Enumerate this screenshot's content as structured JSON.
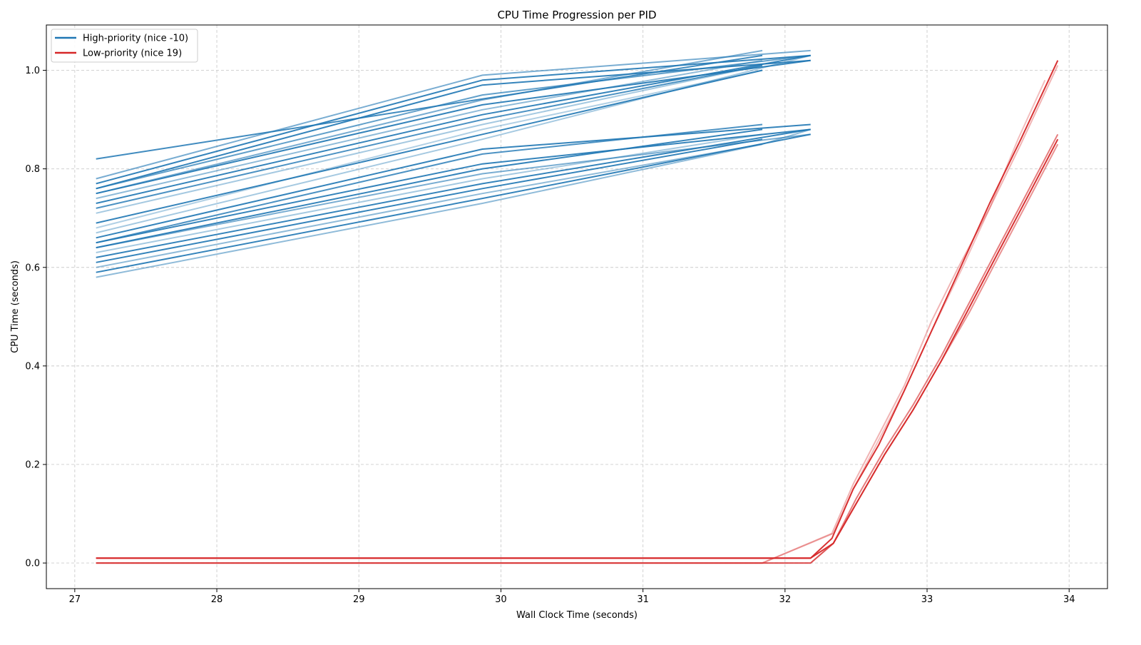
{
  "chart_data": {
    "type": "line",
    "title": "CPU Time Progression per PID",
    "xlabel": "Wall Clock Time (seconds)",
    "ylabel": "CPU Time (seconds)",
    "xlim": [
      26.8,
      34.27
    ],
    "ylim": [
      -0.052,
      1.092
    ],
    "xticks": [
      27,
      28,
      29,
      30,
      31,
      32,
      33,
      34
    ],
    "yticks": [
      0.0,
      0.2,
      0.4,
      0.6,
      0.8,
      1.0
    ],
    "xtick_labels": [
      "27",
      "28",
      "29",
      "30",
      "31",
      "32",
      "33",
      "34"
    ],
    "ytick_labels": [
      "0.0",
      "0.2",
      "0.4",
      "0.6",
      "0.8",
      "1.0"
    ],
    "grid": true,
    "legend_position": "top-left",
    "legend": [
      {
        "label": "High-priority (nice -10)",
        "color": "#1f77b4"
      },
      {
        "label": "Low-priority (nice 19)",
        "color": "#d62728"
      }
    ],
    "series_groups": [
      {
        "legend_label": "High-priority (nice -10)",
        "color": "#1f77b4",
        "series": [
          {
            "x": [
              27.15,
              31.84
            ],
            "y": [
              0.82,
              1.03
            ],
            "alpha": 0.85
          },
          {
            "x": [
              27.15,
              29.87,
              32.18
            ],
            "y": [
              0.78,
              0.99,
              1.04
            ],
            "alpha": 0.6
          },
          {
            "x": [
              27.15,
              29.87,
              32.18
            ],
            "y": [
              0.77,
              0.98,
              1.03
            ],
            "alpha": 0.9
          },
          {
            "x": [
              27.15,
              29.87,
              32.18
            ],
            "y": [
              0.76,
              0.97,
              1.02
            ],
            "alpha": 0.9
          },
          {
            "x": [
              27.15,
              29.87,
              32.18
            ],
            "y": [
              0.76,
              0.95,
              1.03
            ],
            "alpha": 0.7
          },
          {
            "x": [
              27.15,
              29.87,
              31.84
            ],
            "y": [
              0.75,
              0.94,
              1.04
            ],
            "alpha": 0.6
          },
          {
            "x": [
              27.15,
              29.87,
              32.18
            ],
            "y": [
              0.75,
              0.93,
              1.02
            ],
            "alpha": 0.9
          },
          {
            "x": [
              27.15,
              29.87,
              31.84
            ],
            "y": [
              0.74,
              0.92,
              1.02
            ],
            "alpha": 0.5
          },
          {
            "x": [
              27.15,
              29.87,
              32.18
            ],
            "y": [
              0.73,
              0.91,
              1.03
            ],
            "alpha": 0.9
          },
          {
            "x": [
              27.15,
              29.87,
              31.84
            ],
            "y": [
              0.72,
              0.9,
              1.01
            ],
            "alpha": 0.8
          },
          {
            "x": [
              27.15,
              29.87,
              31.84
            ],
            "y": [
              0.71,
              0.89,
              1.01
            ],
            "alpha": 0.4
          },
          {
            "x": [
              27.15,
              29.87,
              31.84
            ],
            "y": [
              0.69,
              0.87,
              1.0
            ],
            "alpha": 0.9
          },
          {
            "x": [
              27.15,
              29.87,
              31.84
            ],
            "y": [
              0.68,
              0.88,
              1.0
            ],
            "alpha": 0.35
          },
          {
            "x": [
              27.15,
              29.87,
              32.18
            ],
            "y": [
              0.67,
              0.86,
              1.03
            ],
            "alpha": 0.4
          },
          {
            "x": [
              27.15,
              29.87,
              32.18
            ],
            "y": [
              0.66,
              0.84,
              0.89
            ],
            "alpha": 0.9
          },
          {
            "x": [
              27.15,
              29.87,
              31.84
            ],
            "y": [
              0.65,
              0.83,
              0.89
            ],
            "alpha": 0.8
          },
          {
            "x": [
              27.15,
              29.87,
              32.18
            ],
            "y": [
              0.65,
              0.81,
              0.88
            ],
            "alpha": 0.9
          },
          {
            "x": [
              27.15,
              29.87,
              31.84
            ],
            "y": [
              0.64,
              0.8,
              0.88
            ],
            "alpha": 0.9
          },
          {
            "x": [
              27.15,
              29.87,
              32.18
            ],
            "y": [
              0.64,
              0.79,
              0.87
            ],
            "alpha": 0.6
          },
          {
            "x": [
              27.15,
              29.87,
              31.84
            ],
            "y": [
              0.63,
              0.78,
              0.87
            ],
            "alpha": 0.4
          },
          {
            "x": [
              27.15,
              29.87,
              32.18
            ],
            "y": [
              0.62,
              0.77,
              0.88
            ],
            "alpha": 0.9
          },
          {
            "x": [
              27.15,
              29.87,
              31.84
            ],
            "y": [
              0.61,
              0.76,
              0.86
            ],
            "alpha": 0.9
          },
          {
            "x": [
              27.15,
              29.87,
              31.84
            ],
            "y": [
              0.6,
              0.75,
              0.85
            ],
            "alpha": 0.5
          },
          {
            "x": [
              27.15,
              29.87,
              32.18
            ],
            "y": [
              0.59,
              0.74,
              0.87
            ],
            "alpha": 0.9
          },
          {
            "x": [
              27.15,
              29.87,
              31.84,
              32.18
            ],
            "y": [
              0.58,
              0.73,
              0.85,
              0.88
            ],
            "alpha": 0.5
          }
        ]
      },
      {
        "legend_label": "Low-priority (nice 19)",
        "color": "#d62728",
        "series": [
          {
            "x": [
              27.15,
              32.18,
              32.33,
              32.48,
              32.66,
              32.84,
              33.03,
              33.22,
              33.44,
              33.66,
              33.92
            ],
            "y": [
              0.01,
              0.01,
              0.05,
              0.15,
              0.24,
              0.35,
              0.47,
              0.59,
              0.73,
              0.86,
              1.02
            ],
            "alpha": 0.95
          },
          {
            "x": [
              27.15,
              32.18,
              32.34,
              32.5,
              32.7,
              32.9,
              33.1,
              33.3,
              33.5,
              33.72,
              33.92
            ],
            "y": [
              0.01,
              0.01,
              0.04,
              0.12,
              0.22,
              0.31,
              0.41,
              0.52,
              0.63,
              0.75,
              0.86
            ],
            "alpha": 0.95
          },
          {
            "x": [
              27.15,
              32.18,
              32.34,
              32.5,
              32.7,
              32.9,
              33.1,
              33.3,
              33.5,
              33.72,
              33.92
            ],
            "y": [
              0.0,
              0.0,
              0.04,
              0.13,
              0.23,
              0.32,
              0.42,
              0.53,
              0.64,
              0.76,
              0.87
            ],
            "alpha": 0.6
          },
          {
            "x": [
              27.15,
              32.18,
              32.34,
              32.5,
              32.7,
              32.9,
              33.1,
              33.3,
              33.5,
              33.72,
              33.92
            ],
            "y": [
              0.0,
              0.0,
              0.04,
              0.12,
              0.22,
              0.31,
              0.41,
              0.51,
              0.62,
              0.74,
              0.85
            ],
            "alpha": 0.5
          },
          {
            "x": [
              27.15,
              31.84,
              32.33,
              32.48,
              32.66,
              32.84,
              33.03,
              33.22,
              33.44,
              33.66,
              33.92
            ],
            "y": [
              0.0,
              0.0,
              0.06,
              0.16,
              0.26,
              0.36,
              0.49,
              0.6,
              0.72,
              0.85,
              1.01
            ],
            "alpha": 0.35
          },
          {
            "x": [
              27.15,
              31.84,
              32.34,
              32.48,
              32.66,
              32.84,
              33.03,
              33.25,
              33.44,
              33.64,
              33.83
            ],
            "y": [
              0.0,
              0.0,
              0.06,
              0.15,
              0.25,
              0.35,
              0.47,
              0.6,
              0.72,
              0.86,
              0.98
            ],
            "alpha": 0.3
          }
        ]
      }
    ]
  }
}
